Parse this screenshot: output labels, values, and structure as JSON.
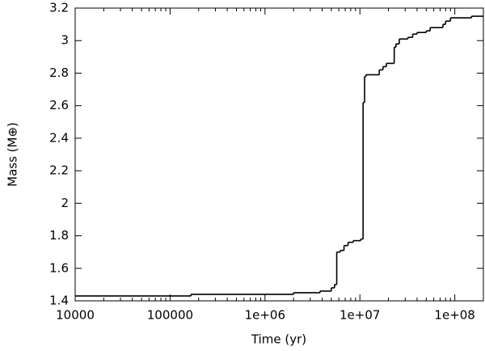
{
  "chart_data": {
    "type": "step",
    "x_label": "Time (yr)",
    "y_label": "Mass (M⊕)",
    "log_x": true,
    "color": "#000000",
    "xlim": [
      10000,
      200000000
    ],
    "xticks": [
      10000,
      100000,
      {
        "value": 1000000,
        "label": "1e+06"
      },
      {
        "value": 10000000,
        "label": "1e+07"
      },
      {
        "value": 100000000,
        "label": "1e+08"
      }
    ],
    "ylim": [
      1.4,
      3.2
    ],
    "yticks": [
      1.4,
      1.6,
      1.8,
      2,
      2.2,
      2.4,
      2.6,
      2.8,
      3,
      3.2
    ],
    "x": [
      10000,
      166000,
      2000000,
      3800000,
      5000000,
      5400000,
      5700000,
      6200000,
      6800000,
      7500000,
      8500000,
      10200000,
      10800000,
      11200000,
      11600000,
      16000000,
      17500000,
      19000000,
      23000000,
      24000000,
      26000000,
      32000000,
      36000000,
      40000000,
      50000000,
      55000000,
      75000000,
      80000000,
      90000000,
      150000000
    ],
    "values": [
      1.43,
      1.44,
      1.45,
      1.46,
      1.48,
      1.5,
      1.7,
      1.71,
      1.74,
      1.76,
      1.77,
      1.78,
      2.62,
      2.78,
      2.79,
      2.82,
      2.84,
      2.86,
      2.96,
      2.98,
      3.01,
      3.02,
      3.04,
      3.05,
      3.06,
      3.08,
      3.1,
      3.12,
      3.14,
      3.15
    ]
  }
}
